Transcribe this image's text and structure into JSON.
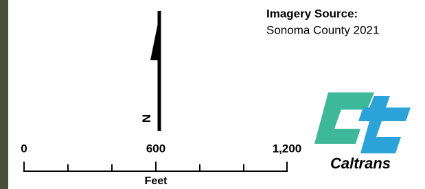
{
  "imagery_source": {
    "title": "Imagery Source:",
    "text": "Sonoma County 2021"
  },
  "north_arrow": {
    "label": "N"
  },
  "scale_bar": {
    "labels": [
      "0",
      "600",
      "1,200"
    ],
    "unit": "Feet"
  },
  "logo": {
    "text": "Caltrans"
  }
}
